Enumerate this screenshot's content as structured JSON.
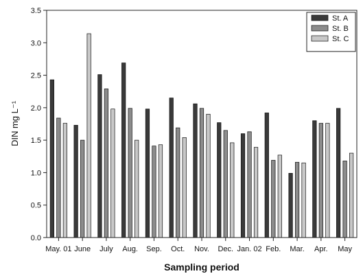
{
  "chart_data": {
    "type": "bar",
    "title": "",
    "xlabel": "Sampling period",
    "ylabel": "DIN mg L⁻¹",
    "ylim": [
      0,
      3.5
    ],
    "yticks": [
      "0.0",
      "0.5",
      "1.0",
      "1.5",
      "2.0",
      "2.5",
      "3.0",
      "3.5"
    ],
    "categories": [
      "May. 01",
      "June",
      "July",
      "Aug.",
      "Sep.",
      "Oct.",
      "Nov.",
      "Dec.",
      "Jan. 02",
      "Feb.",
      "Mar.",
      "Apr.",
      "May"
    ],
    "series": [
      {
        "name": "St. A",
        "color": "#3a3a3a",
        "values": [
          2.43,
          1.73,
          2.51,
          2.69,
          1.98,
          2.15,
          2.06,
          1.77,
          1.6,
          1.92,
          0.99,
          1.8,
          1.99
        ]
      },
      {
        "name": "St. B",
        "color": "#8c8c8c",
        "values": [
          1.84,
          1.5,
          2.29,
          1.99,
          1.41,
          1.69,
          1.99,
          1.65,
          1.63,
          1.19,
          1.16,
          1.76,
          1.18
        ]
      },
      {
        "name": "St. C",
        "color": "#c8c8c8",
        "values": [
          1.76,
          3.14,
          1.98,
          1.5,
          1.43,
          1.54,
          1.9,
          1.46,
          1.39,
          1.27,
          1.15,
          1.76,
          1.3
        ]
      }
    ],
    "legend_position": "top-right",
    "grid": false
  }
}
